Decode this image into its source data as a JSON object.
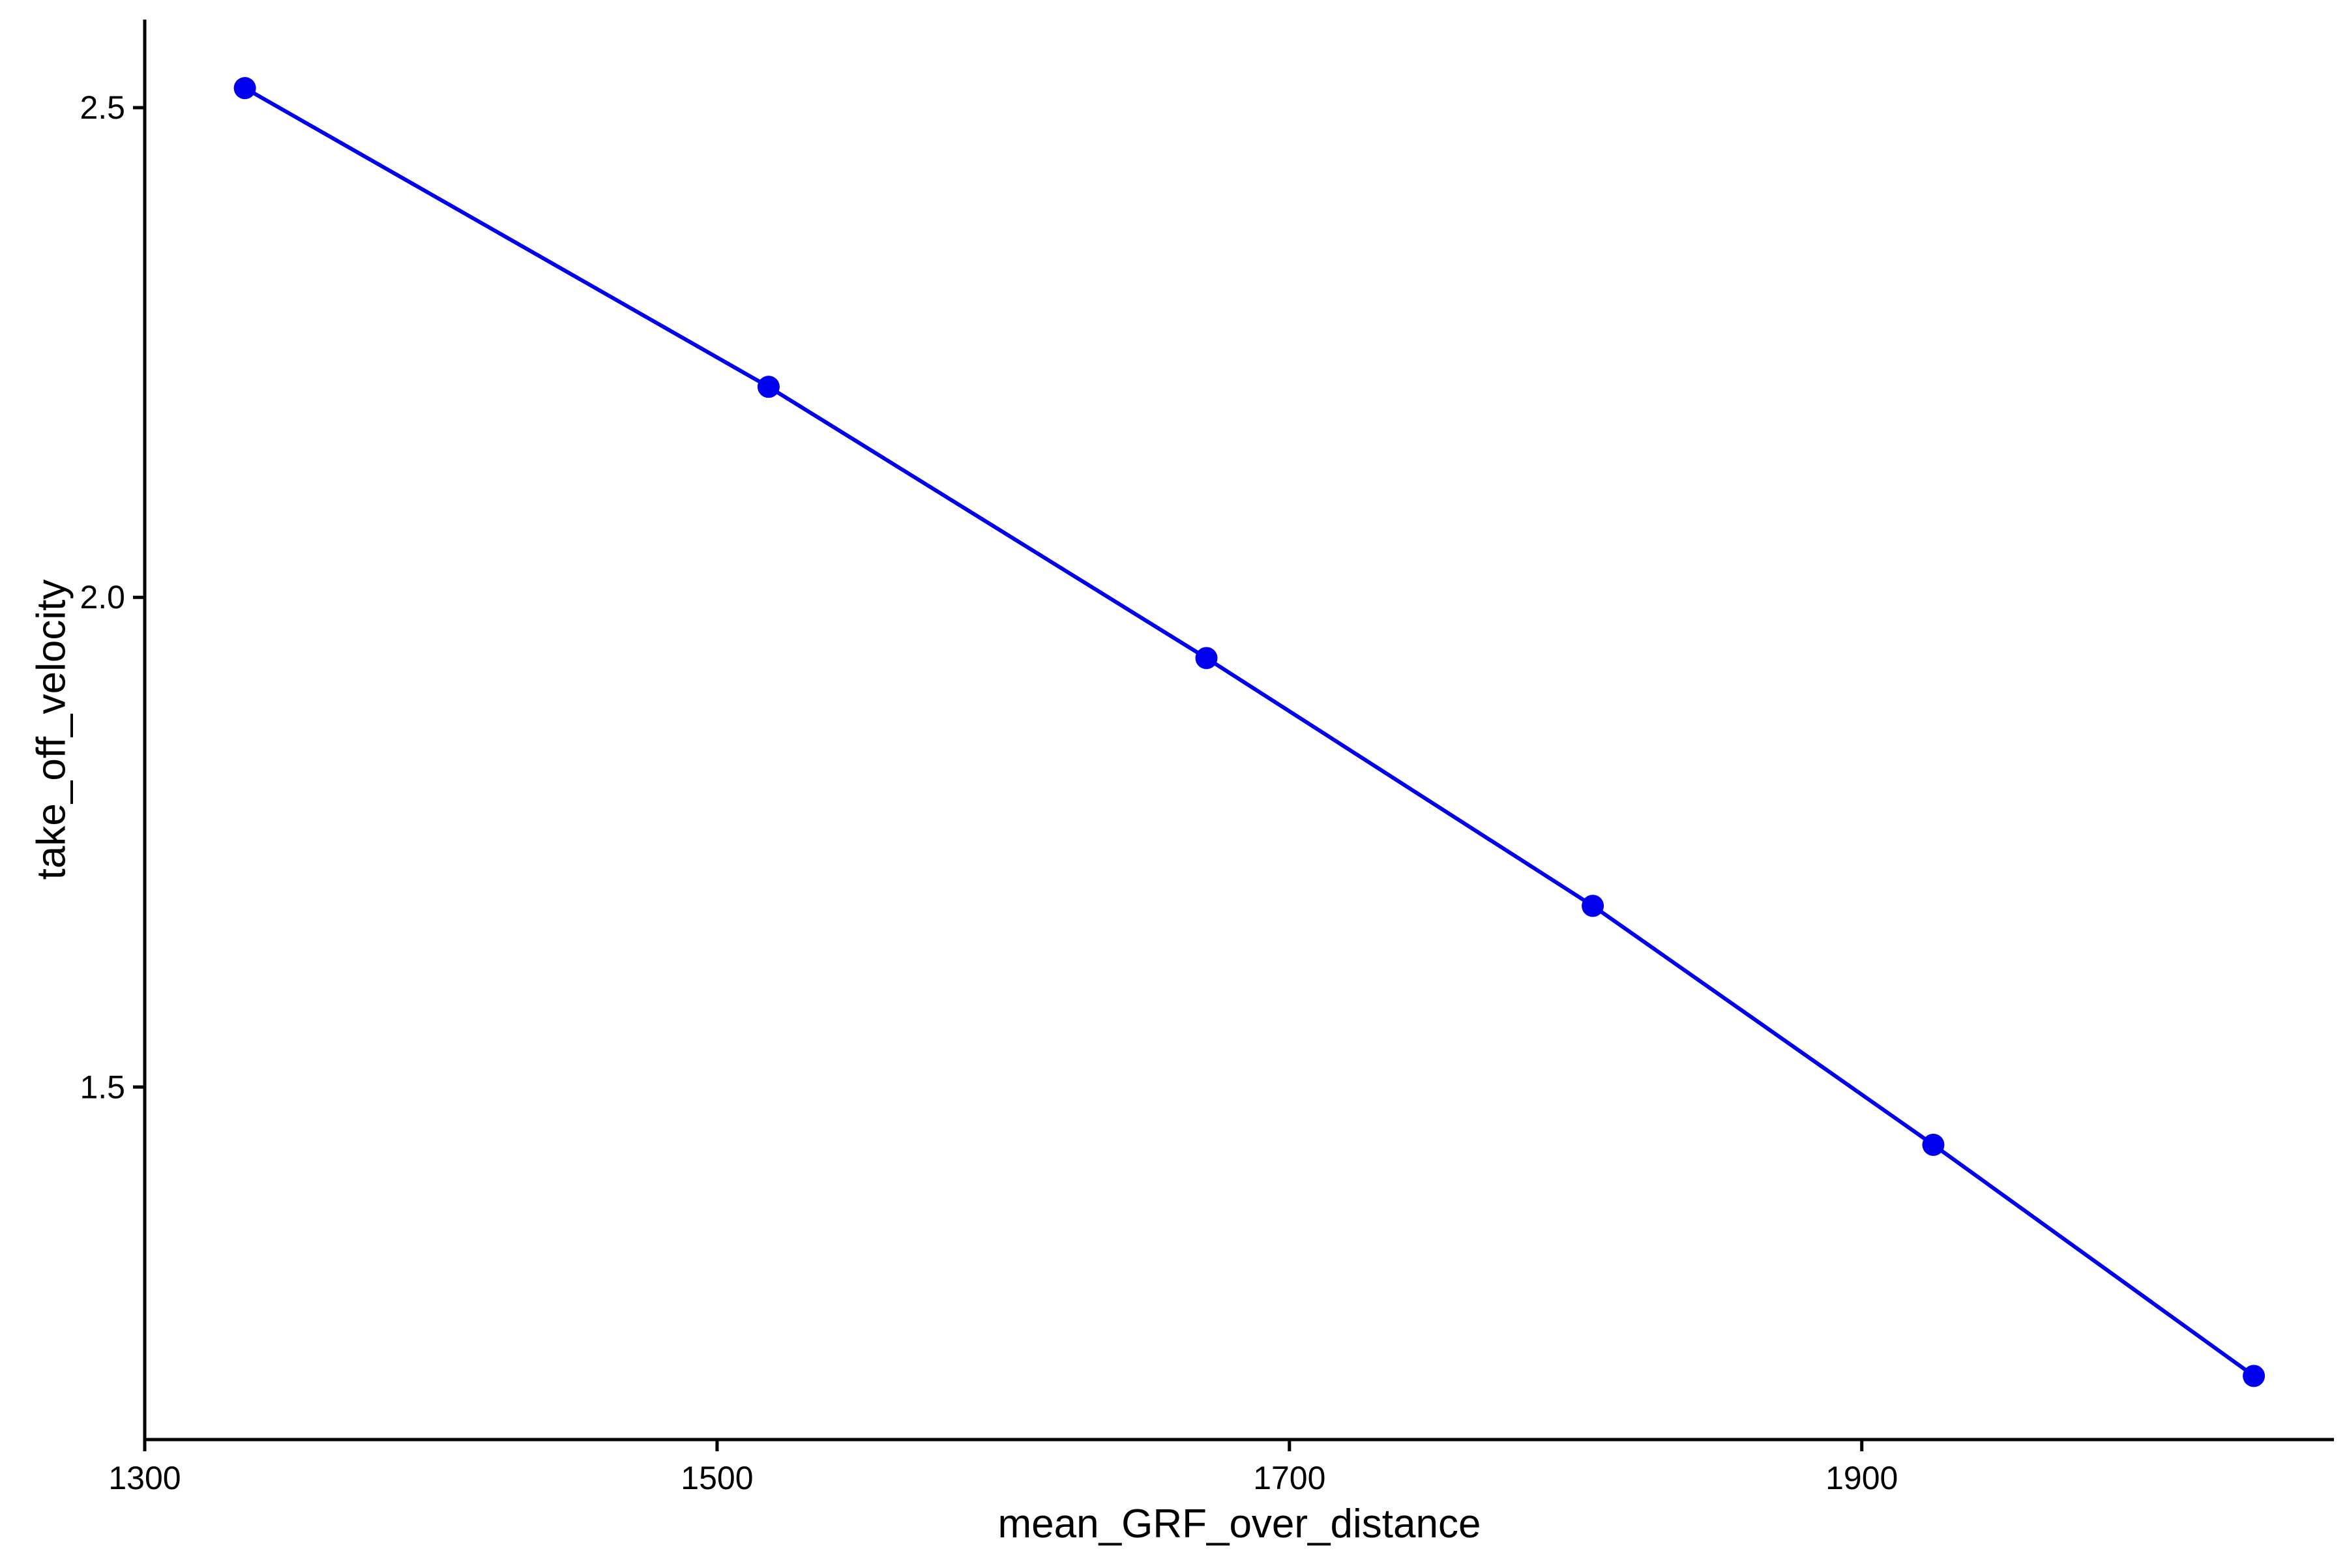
{
  "chart_data": {
    "type": "line",
    "title": "",
    "xlabel": "mean_GRF_over_distance",
    "ylabel": "take_off_velocity",
    "xlim": [
      1300,
      2065
    ],
    "ylim": [
      1.14,
      2.59
    ],
    "x_ticks": [
      1300,
      1500,
      1700,
      1900
    ],
    "x_tick_labels": [
      "1300",
      "1500",
      "1700",
      "1900"
    ],
    "y_ticks": [
      1.5,
      2.0,
      2.5
    ],
    "y_tick_labels": [
      "1.5",
      "2.0",
      "2.5"
    ],
    "grid": false,
    "legend": "none",
    "series": [
      {
        "color": "#0000ee",
        "x": [
          1335,
          1518,
          1671,
          1806,
          1925,
          2037
        ],
        "y": [
          2.52,
          2.215,
          1.938,
          1.685,
          1.441,
          1.205
        ]
      }
    ]
  }
}
